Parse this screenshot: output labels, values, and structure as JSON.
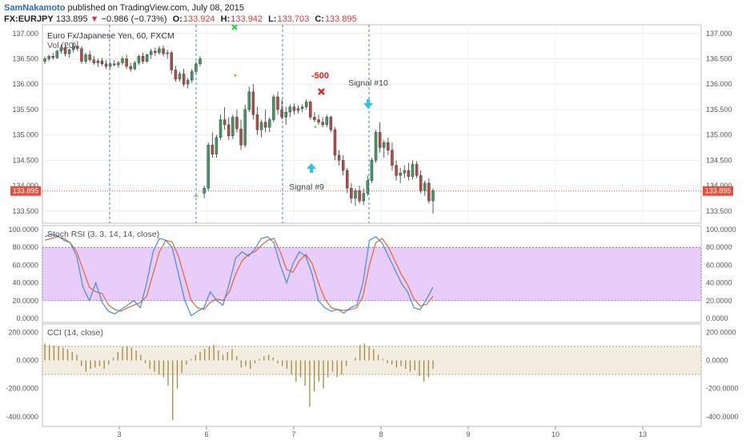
{
  "header": {
    "author": "SamNakamoto",
    "published": " published on TradingView.com, July 08, 2015",
    "symbol": "FX:EURJPY",
    "last": "133.895",
    "arrow": "▼",
    "change": "−0.986 (−0.73%)",
    "o_label": "O:",
    "o": "133.924",
    "h_label": "H:",
    "h": "133.942",
    "l_label": "L:",
    "l": "133.703",
    "c_label": "C:",
    "c": "133.895"
  },
  "main": {
    "legend_title": "Euro Fx/Japanese Yen, 60, FXCM",
    "legend_vol": "Vol (20)",
    "price_axis": [
      "137.000",
      "136.500",
      "136.000",
      "135.500",
      "135.000",
      "134.500",
      "134.000",
      "133.500"
    ],
    "price_axis_values": [
      137.0,
      136.5,
      136.0,
      135.5,
      135.0,
      134.5,
      134.0,
      133.5
    ],
    "last_price_tag": "133.895",
    "last_price": 133.895,
    "price_range": [
      133.26,
      137.17
    ],
    "annotations": {
      "minus500": "-500",
      "signal10": "Signal #10",
      "signal9": "Signal #9"
    },
    "colors": {
      "up": "#3e9a62",
      "down": "#b84a44",
      "last_tag": "#e04f3f",
      "signal_cyan": "#29c7e8",
      "cross_red": "#e0201e",
      "cross_green": "#2fd05a",
      "tri_orange": "#f0a31e",
      "tri_green": "#7bd97b"
    }
  },
  "stoch": {
    "title": "Stoch RSI (3, 3, 14, 14, close)",
    "axis": [
      "100.0000",
      "80.0000",
      "60.0000",
      "40.0000",
      "20.0000",
      "0.0000"
    ],
    "axis_values": [
      100,
      80,
      60,
      40,
      20,
      0
    ],
    "band": [
      20,
      80
    ],
    "k_color": "#3f8fe0",
    "d_color": "#e8642e",
    "band_color": "#e8ccfa"
  },
  "cci": {
    "title": "CCI (14, close)",
    "axis": [
      "200.0000",
      "0.0000",
      "-200.0000",
      "-400.0000"
    ],
    "axis_values": [
      200,
      0,
      -200,
      -400
    ],
    "band": [
      -100,
      100
    ],
    "bar_color": "#a58a3c",
    "band_color": "#f3ece0"
  },
  "time_axis": {
    "labels": [
      "3",
      "6",
      "7",
      "8",
      "9",
      "10",
      "13"
    ]
  },
  "chart_data": {
    "type": "candlestick",
    "symbol": "FX:EURJPY",
    "candles": [
      [
        136.45,
        136.55,
        136.4,
        136.5
      ],
      [
        136.5,
        136.58,
        136.45,
        136.55
      ],
      [
        136.55,
        136.62,
        136.48,
        136.52
      ],
      [
        136.52,
        136.68,
        136.5,
        136.65
      ],
      [
        136.65,
        136.78,
        136.6,
        136.72
      ],
      [
        136.72,
        136.8,
        136.55,
        136.6
      ],
      [
        136.6,
        136.7,
        136.52,
        136.68
      ],
      [
        136.68,
        136.82,
        136.62,
        136.75
      ],
      [
        136.75,
        136.85,
        136.65,
        136.7
      ],
      [
        136.7,
        136.75,
        136.4,
        136.45
      ],
      [
        136.45,
        136.62,
        136.4,
        136.58
      ],
      [
        136.58,
        136.66,
        136.44,
        136.48
      ],
      [
        136.48,
        136.56,
        136.38,
        136.42
      ],
      [
        136.42,
        136.5,
        136.34,
        136.46
      ],
      [
        136.46,
        136.52,
        136.36,
        136.4
      ],
      [
        136.4,
        136.48,
        136.3,
        136.35
      ],
      [
        136.35,
        136.45,
        136.3,
        136.4
      ],
      [
        136.4,
        136.48,
        136.35,
        136.38
      ],
      [
        136.38,
        136.46,
        136.32,
        136.42
      ],
      [
        136.42,
        136.55,
        136.38,
        136.5
      ],
      [
        136.5,
        136.58,
        136.3,
        136.35
      ],
      [
        136.35,
        136.42,
        136.25,
        136.3
      ],
      [
        136.3,
        136.46,
        136.28,
        136.42
      ],
      [
        136.42,
        136.58,
        136.38,
        136.55
      ],
      [
        136.55,
        136.62,
        136.4,
        136.45
      ],
      [
        136.45,
        136.6,
        136.42,
        136.58
      ],
      [
        136.58,
        136.7,
        136.5,
        136.65
      ],
      [
        136.65,
        136.72,
        136.55,
        136.62
      ],
      [
        136.62,
        136.75,
        136.58,
        136.7
      ],
      [
        136.7,
        136.76,
        136.55,
        136.6
      ],
      [
        136.6,
        136.68,
        136.5,
        136.62
      ],
      [
        136.62,
        136.66,
        136.2,
        136.28
      ],
      [
        136.28,
        136.36,
        136.05,
        136.1
      ],
      [
        136.1,
        136.25,
        136.05,
        136.2
      ],
      [
        136.2,
        136.3,
        135.95,
        136.0
      ],
      [
        136.0,
        136.12,
        135.92,
        136.08
      ],
      [
        136.08,
        136.3,
        136.02,
        136.25
      ],
      [
        136.25,
        136.45,
        136.2,
        136.4
      ],
      [
        136.4,
        136.55,
        136.35,
        136.5
      ],
      [
        133.85,
        134.0,
        133.75,
        133.95
      ],
      [
        133.95,
        134.85,
        133.9,
        134.8
      ],
      [
        134.8,
        135.05,
        134.55,
        134.62
      ],
      [
        134.62,
        135.0,
        134.55,
        134.95
      ],
      [
        134.95,
        135.4,
        134.9,
        135.3
      ],
      [
        135.3,
        135.55,
        135.1,
        135.2
      ],
      [
        135.2,
        135.35,
        134.9,
        134.98
      ],
      [
        134.98,
        135.4,
        134.92,
        135.35
      ],
      [
        135.35,
        135.5,
        135.05,
        135.12
      ],
      [
        135.12,
        135.3,
        134.7,
        134.8
      ],
      [
        134.8,
        135.6,
        134.75,
        135.5
      ],
      [
        135.5,
        135.95,
        135.45,
        135.85
      ],
      [
        135.85,
        136.0,
        135.3,
        135.4
      ],
      [
        135.4,
        135.55,
        135.0,
        135.1
      ],
      [
        135.1,
        135.3,
        134.95,
        135.25
      ],
      [
        135.25,
        135.5,
        135.05,
        135.15
      ],
      [
        135.15,
        135.35,
        135.05,
        135.3
      ],
      [
        135.3,
        135.8,
        135.25,
        135.75
      ],
      [
        135.75,
        135.85,
        135.4,
        135.5
      ],
      [
        135.5,
        135.7,
        135.3,
        135.35
      ],
      [
        135.35,
        135.55,
        135.2,
        135.45
      ],
      [
        135.45,
        135.6,
        135.35,
        135.55
      ],
      [
        135.55,
        135.62,
        135.4,
        135.48
      ],
      [
        135.48,
        135.58,
        135.42,
        135.52
      ],
      [
        135.52,
        135.6,
        135.45,
        135.55
      ],
      [
        135.55,
        135.7,
        135.5,
        135.65
      ],
      [
        135.65,
        135.68,
        135.3,
        135.35
      ],
      [
        135.35,
        135.45,
        135.25,
        135.3
      ],
      [
        135.3,
        135.4,
        135.2,
        135.25
      ],
      [
        135.25,
        135.35,
        135.15,
        135.2
      ],
      [
        135.2,
        135.4,
        135.15,
        135.35
      ],
      [
        135.35,
        135.38,
        135.05,
        135.1
      ],
      [
        135.1,
        135.15,
        134.5,
        134.6
      ],
      [
        134.6,
        134.7,
        134.4,
        134.5
      ],
      [
        134.5,
        134.6,
        134.2,
        134.3
      ],
      [
        134.3,
        134.35,
        133.85,
        133.95
      ],
      [
        133.95,
        134.05,
        133.65,
        133.75
      ],
      [
        133.75,
        133.95,
        133.6,
        133.9
      ],
      [
        133.9,
        134.0,
        133.65,
        133.7
      ],
      [
        133.7,
        133.95,
        133.62,
        133.85
      ],
      [
        133.85,
        134.2,
        133.8,
        134.1
      ],
      [
        134.1,
        134.55,
        134.05,
        134.5
      ],
      [
        134.5,
        135.1,
        134.45,
        135.05
      ],
      [
        135.05,
        135.25,
        134.65,
        134.75
      ],
      [
        134.75,
        134.9,
        134.55,
        134.85
      ],
      [
        134.85,
        134.95,
        134.6,
        134.7
      ],
      [
        134.7,
        134.85,
        134.3,
        134.4
      ],
      [
        134.4,
        134.5,
        134.1,
        134.2
      ],
      [
        134.2,
        134.35,
        134.05,
        134.25
      ],
      [
        134.25,
        134.4,
        134.15,
        134.3
      ],
      [
        134.3,
        134.45,
        134.1,
        134.18
      ],
      [
        134.18,
        134.5,
        134.12,
        134.42
      ],
      [
        134.42,
        134.48,
        134.15,
        134.2
      ],
      [
        134.2,
        134.3,
        133.85,
        133.9
      ],
      [
        133.9,
        134.1,
        133.8,
        134.05
      ],
      [
        134.05,
        134.15,
        133.65,
        133.7
      ],
      [
        133.7,
        133.95,
        133.45,
        133.9
      ]
    ],
    "stoch_k": [
      92,
      95,
      93,
      88,
      85,
      70,
      35,
      20,
      40,
      18,
      8,
      5,
      10,
      15,
      20,
      12,
      40,
      75,
      90,
      88,
      80,
      50,
      20,
      3,
      8,
      12,
      30,
      20,
      15,
      40,
      68,
      75,
      70,
      78,
      90,
      92,
      85,
      60,
      40,
      62,
      75,
      70,
      50,
      20,
      12,
      8,
      10,
      6,
      12,
      15,
      40,
      88,
      92,
      85,
      70,
      55,
      40,
      30,
      12,
      10,
      22,
      35
    ],
    "stoch_d": [
      88,
      90,
      92,
      90,
      85,
      75,
      55,
      35,
      30,
      28,
      15,
      10,
      8,
      12,
      15,
      18,
      25,
      50,
      75,
      88,
      86,
      70,
      45,
      20,
      12,
      10,
      18,
      22,
      20,
      30,
      50,
      65,
      72,
      75,
      82,
      88,
      90,
      75,
      55,
      52,
      65,
      72,
      62,
      40,
      22,
      12,
      10,
      9,
      10,
      12,
      25,
      60,
      85,
      90,
      80,
      65,
      50,
      38,
      22,
      14,
      16,
      25
    ],
    "cci": [
      120,
      110,
      105,
      100,
      90,
      80,
      60,
      40,
      -40,
      -80,
      -60,
      -50,
      -40,
      -60,
      -30,
      20,
      60,
      95,
      100,
      90,
      70,
      40,
      -20,
      -60,
      -80,
      -100,
      -120,
      -180,
      -425,
      -200,
      -90,
      -30,
      10,
      40,
      60,
      80,
      100,
      110,
      70,
      40,
      60,
      80,
      30,
      -50,
      -40,
      -60,
      -20,
      10,
      30,
      40,
      20,
      -20,
      -40,
      -60,
      -100,
      -150,
      -120,
      -180,
      -330,
      -220,
      -150,
      -200,
      -120,
      -80,
      -120,
      -100,
      -40,
      0,
      20,
      110,
      120,
      100,
      80,
      40,
      10,
      -20,
      -30,
      -50,
      -40,
      -60,
      -80,
      -70,
      -110,
      -150,
      -120,
      -60
    ]
  }
}
